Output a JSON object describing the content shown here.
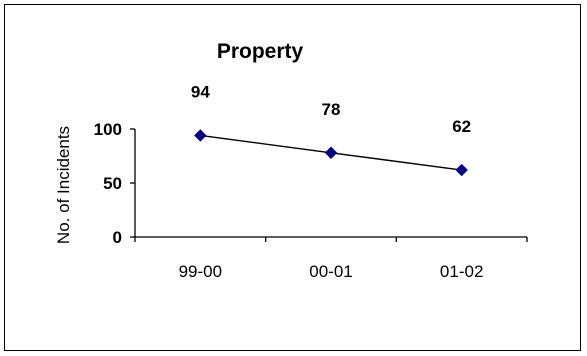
{
  "chart_data": {
    "type": "line",
    "title": "Property",
    "ylabel": "No. of Incidents",
    "xlabel": "",
    "categories": [
      "99-00",
      "00-01",
      "01-02"
    ],
    "series": [
      {
        "values": [
          94,
          78,
          62
        ],
        "data_labels": [
          "94",
          "78",
          "62"
        ]
      }
    ],
    "ylim": [
      0,
      100
    ],
    "yticks": [
      0,
      50,
      100
    ],
    "ytick_labels": [
      "0",
      "50",
      "100"
    ],
    "grid": false,
    "legend": "none",
    "line_color": "#000000",
    "marker_color": "#000080",
    "marker": "diamond"
  }
}
